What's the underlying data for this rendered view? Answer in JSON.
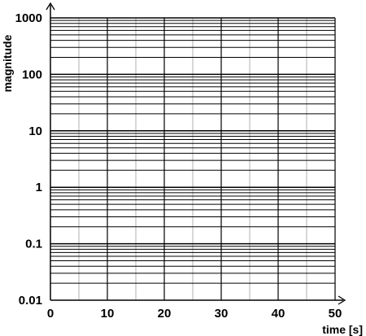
{
  "chart_data": {
    "type": "line",
    "title": "",
    "xlabel": "time [s]",
    "ylabel": "magnitude",
    "x_scale": "linear",
    "y_scale": "log",
    "xlim": [
      0,
      50
    ],
    "ylim": [
      0.01,
      1000
    ],
    "x_ticks": [
      0,
      10,
      20,
      30,
      40,
      50
    ],
    "x_tick_labels": [
      "0",
      "10",
      "20",
      "30",
      "40",
      "50"
    ],
    "x_minor_ticks": [
      5,
      15,
      25,
      35,
      45
    ],
    "y_ticks": [
      0.01,
      0.1,
      1,
      10,
      100,
      1000
    ],
    "y_tick_labels": [
      "0.01",
      "0.1",
      "1",
      "10",
      "100",
      "1000"
    ],
    "grid": true,
    "series": []
  }
}
